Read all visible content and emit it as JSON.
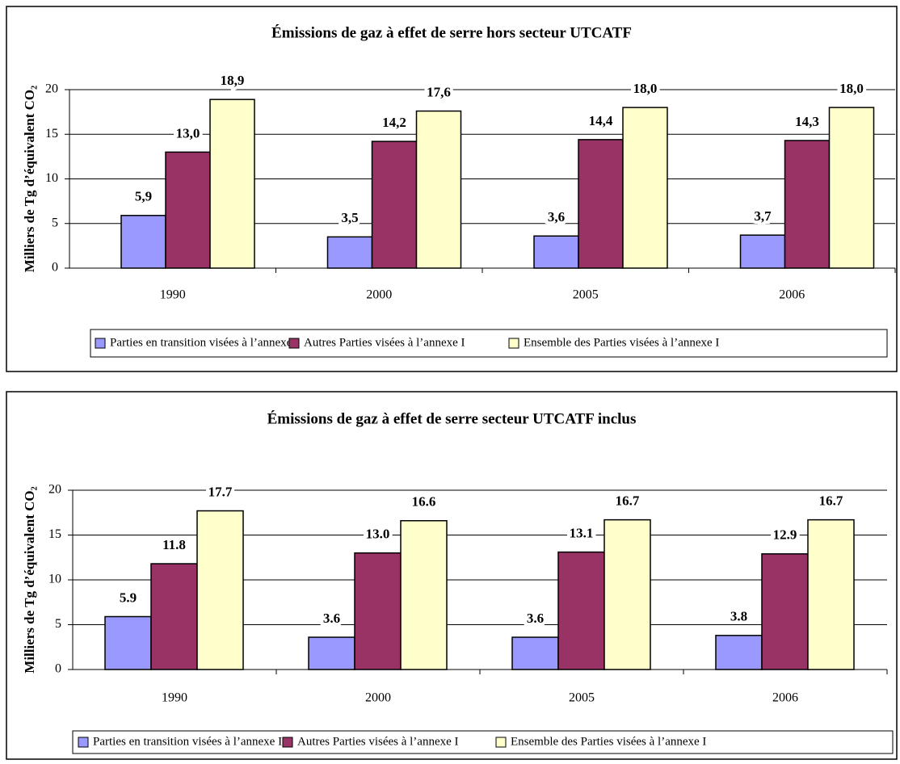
{
  "chart_data": [
    {
      "type": "bar",
      "title": "Émissions de gaz à effet de serre hors secteur UTCATF",
      "y_label": "Milliers de Tg d’équivalent CO₂",
      "categories": [
        "1990",
        "2000",
        "2005",
        "2006"
      ],
      "series": [
        {
          "name": "Parties en transition visées à l’annexe I",
          "color": "#9999ff",
          "values": [
            5.9,
            3.5,
            3.6,
            3.7
          ],
          "value_labels": [
            "5,9",
            "3,5",
            "3,6",
            "3,7"
          ]
        },
        {
          "name": "Autres Parties visées à l’annexe I",
          "color": "#993366",
          "values": [
            13.0,
            14.2,
            14.4,
            14.3
          ],
          "value_labels": [
            "13,0",
            "14,2",
            "14,4",
            "14,3"
          ]
        },
        {
          "name": "Ensemble des Parties visées à l’annexe I",
          "color": "#ffffcc",
          "values": [
            18.9,
            17.6,
            18.0,
            18.0
          ],
          "value_labels": [
            "18,9",
            "17,6",
            "18,0",
            "18,0"
          ]
        }
      ],
      "ylim": [
        0,
        20
      ],
      "yticks": [
        0,
        5,
        10,
        15,
        20
      ],
      "grid": true,
      "legend": "bottom"
    },
    {
      "type": "bar",
      "title": "Émissions de gaz à effet de serre secteur UTCATF inclus",
      "y_label": "Milliers de Tg d’équivalent CO₂",
      "categories": [
        "1990",
        "2000",
        "2005",
        "2006"
      ],
      "series": [
        {
          "name": "Parties en transition visées à l’annexe I",
          "color": "#9999ff",
          "values": [
            5.9,
            3.6,
            3.6,
            3.8
          ],
          "value_labels": [
            "5.9",
            "3.6",
            "3.6",
            "3.8"
          ]
        },
        {
          "name": "Autres Parties visées à l’annexe I",
          "color": "#993366",
          "values": [
            11.8,
            13.0,
            13.1,
            12.9
          ],
          "value_labels": [
            "11.8",
            "13.0",
            "13.1",
            "12.9"
          ]
        },
        {
          "name": "Ensemble des Parties visées à l’annexe I",
          "color": "#ffffcc",
          "values": [
            17.7,
            16.6,
            16.7,
            16.7
          ],
          "value_labels": [
            "17.7",
            "16.6",
            "16.7",
            "16.7"
          ]
        }
      ],
      "ylim": [
        0,
        20
      ],
      "yticks": [
        0,
        5,
        10,
        15,
        20
      ],
      "grid": true,
      "legend": "bottom"
    }
  ]
}
